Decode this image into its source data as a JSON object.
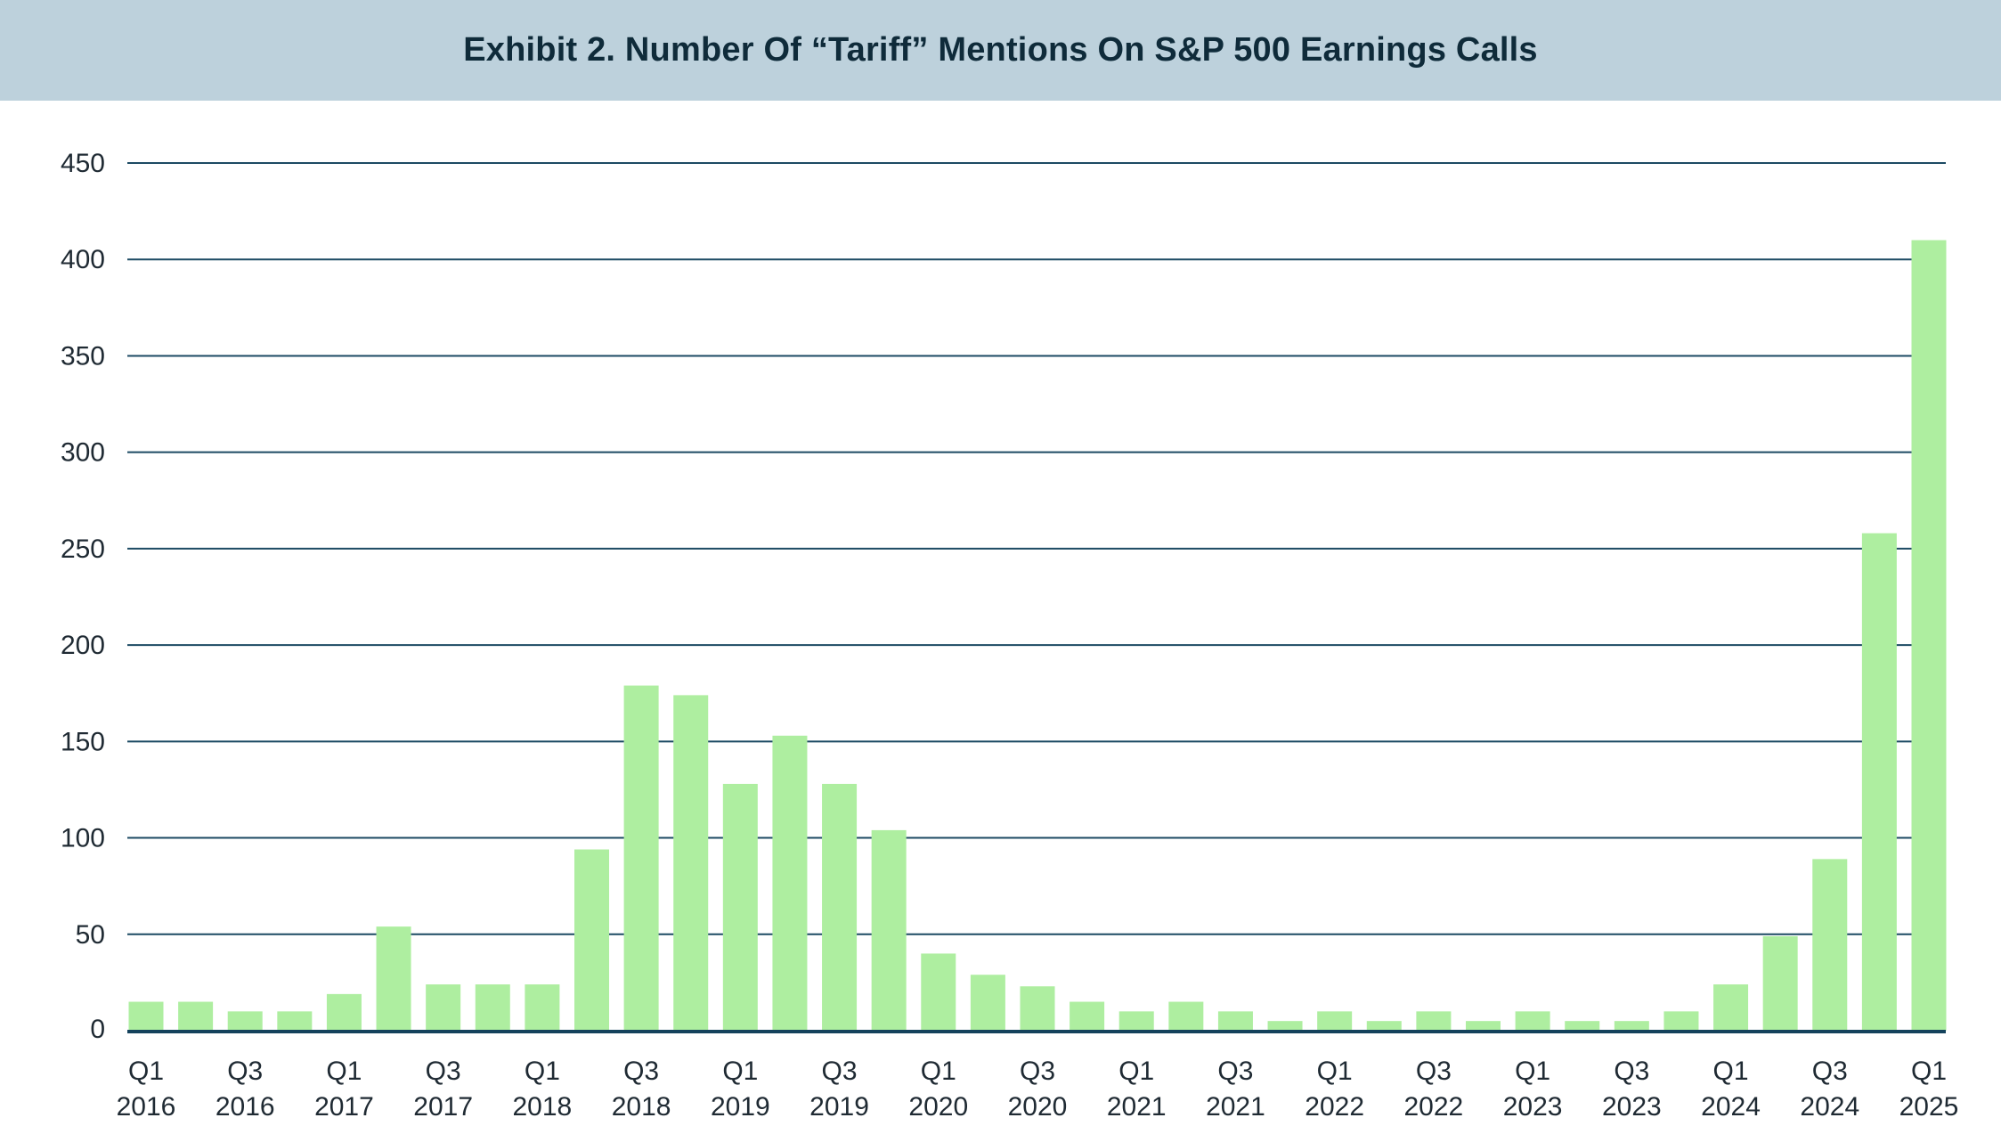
{
  "title": "Exhibit 2. Number Of “Tariff” Mentions On S&P 500 Earnings Calls",
  "colors": {
    "bar": "#aeeea0",
    "grid": "#1c4a63",
    "baseline": "#14425c",
    "title_bg": "#bdd1dc"
  },
  "chart_data": {
    "type": "bar",
    "title": "Exhibit 2. Number Of “Tariff” Mentions On S&P 500 Earnings Calls",
    "xlabel": "",
    "ylabel": "",
    "ylim": [
      0,
      450
    ],
    "yticks": [
      0,
      50,
      100,
      150,
      200,
      250,
      300,
      350,
      400,
      450
    ],
    "grid": true,
    "legend": "none",
    "categories": [
      "Q1 2016",
      "Q2 2016",
      "Q3 2016",
      "Q4 2016",
      "Q1 2017",
      "Q2 2017",
      "Q3 2017",
      "Q4 2017",
      "Q1 2018",
      "Q2 2018",
      "Q3 2018",
      "Q4 2018",
      "Q1 2019",
      "Q2 2019",
      "Q3 2019",
      "Q4 2019",
      "Q1 2020",
      "Q2 2020",
      "Q3 2020",
      "Q4 2020",
      "Q1 2021",
      "Q2 2021",
      "Q3 2021",
      "Q4 2021",
      "Q1 2022",
      "Q2 2022",
      "Q3 2022",
      "Q4 2022",
      "Q1 2023",
      "Q2 2023",
      "Q3 2023",
      "Q4 2023",
      "Q1 2024",
      "Q2 2024",
      "Q3 2024",
      "Q4 2024",
      "Q1 2025"
    ],
    "tick_labels": [
      {
        "index": 0,
        "line1": "Q1",
        "line2": "2016"
      },
      {
        "index": 2,
        "line1": "Q3",
        "line2": "2016"
      },
      {
        "index": 4,
        "line1": "Q1",
        "line2": "2017"
      },
      {
        "index": 6,
        "line1": "Q3",
        "line2": "2017"
      },
      {
        "index": 8,
        "line1": "Q1",
        "line2": "2018"
      },
      {
        "index": 10,
        "line1": "Q3",
        "line2": "2018"
      },
      {
        "index": 12,
        "line1": "Q1",
        "line2": "2019"
      },
      {
        "index": 14,
        "line1": "Q3",
        "line2": "2019"
      },
      {
        "index": 16,
        "line1": "Q1",
        "line2": "2020"
      },
      {
        "index": 18,
        "line1": "Q3",
        "line2": "2020"
      },
      {
        "index": 20,
        "line1": "Q1",
        "line2": "2021"
      },
      {
        "index": 22,
        "line1": "Q3",
        "line2": "2021"
      },
      {
        "index": 24,
        "line1": "Q1",
        "line2": "2022"
      },
      {
        "index": 26,
        "line1": "Q3",
        "line2": "2022"
      },
      {
        "index": 28,
        "line1": "Q1",
        "line2": "2023"
      },
      {
        "index": 30,
        "line1": "Q3",
        "line2": "2023"
      },
      {
        "index": 32,
        "line1": "Q1",
        "line2": "2024"
      },
      {
        "index": 34,
        "line1": "Q3",
        "line2": "2024"
      },
      {
        "index": 36,
        "line1": "Q1",
        "line2": "2025"
      }
    ],
    "values": [
      15,
      15,
      10,
      10,
      19,
      54,
      24,
      24,
      24,
      94,
      179,
      174,
      128,
      153,
      128,
      104,
      40,
      29,
      23,
      15,
      10,
      15,
      10,
      5,
      10,
      5,
      10,
      5,
      10,
      5,
      5,
      10,
      24,
      49,
      89,
      258,
      410
    ]
  }
}
